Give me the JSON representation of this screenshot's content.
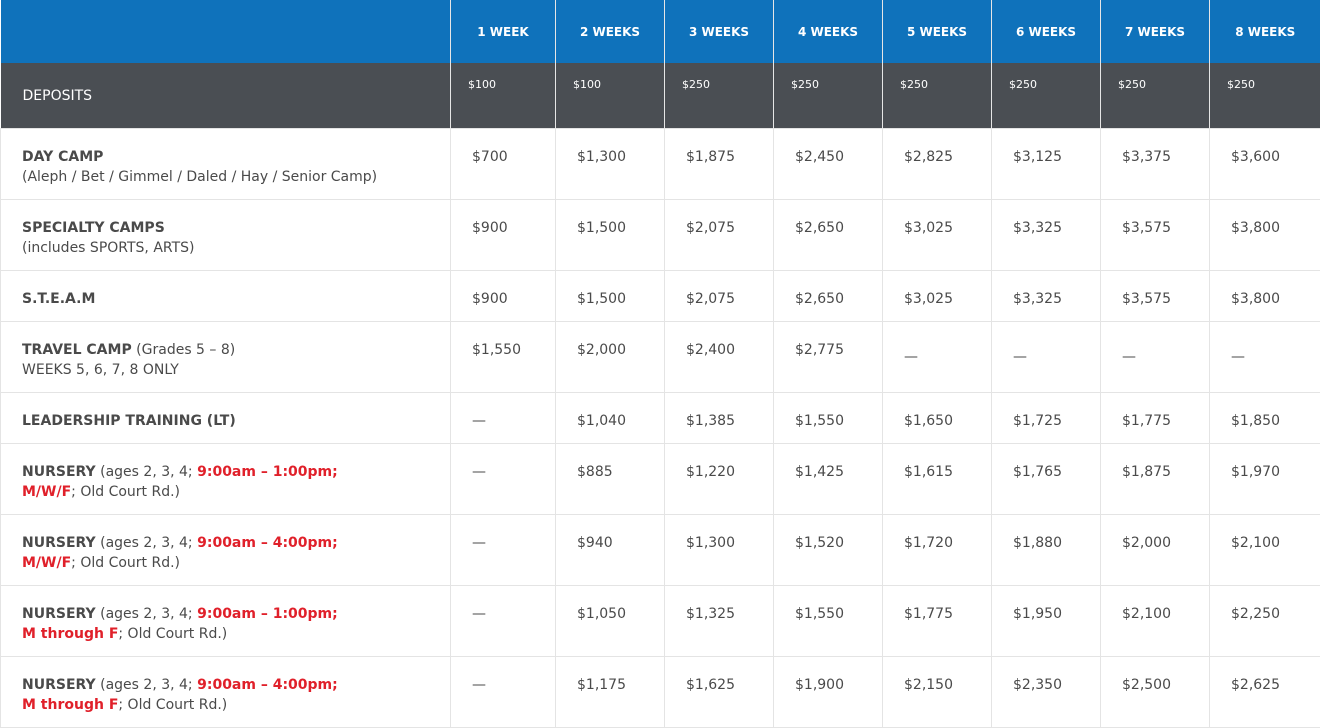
{
  "header": {
    "weeks": [
      "1 WEEK",
      "2 WEEKS",
      "3 WEEKS",
      "4 WEEKS",
      "5 WEEKS",
      "6 WEEKS",
      "7 WEEKS",
      "8 WEEKS"
    ]
  },
  "deposits": {
    "label": "DEPOSITS",
    "values": [
      "$100",
      "$100",
      "$250",
      "$250",
      "$250",
      "$250",
      "$250",
      "$250"
    ]
  },
  "colors": {
    "header_blue": "#0f72bb",
    "deposit_gray": "#4a4e53",
    "highlight_red": "#e0202a"
  },
  "rows": [
    {
      "title": "DAY CAMP",
      "title_suffix": "",
      "hl1": "",
      "hl1_after": "",
      "hl2": "",
      "hl2_after": "",
      "line2": "(Aleph / Bet / Gimmel / Daled / Hay / Senior Camp)",
      "values": [
        "$700",
        "$1,300",
        "$1,875",
        "$2,450",
        "$2,825",
        "$3,125",
        "$3,375",
        "$3,600"
      ]
    },
    {
      "title": "SPECIALTY CAMPS",
      "title_suffix": "",
      "hl1": "",
      "hl1_after": "",
      "hl2": "",
      "hl2_after": "",
      "line2": "(includes SPORTS, ARTS)",
      "values": [
        "$900",
        "$1,500",
        "$2,075",
        "$2,650",
        "$3,025",
        "$3,325",
        "$3,575",
        "$3,800"
      ]
    },
    {
      "title": "S.T.E.A.M",
      "title_suffix": "",
      "hl1": "",
      "hl1_after": "",
      "hl2": "",
      "hl2_after": "",
      "line2": "",
      "values": [
        "$900",
        "$1,500",
        "$2,075",
        "$2,650",
        "$3,025",
        "$3,325",
        "$3,575",
        "$3,800"
      ]
    },
    {
      "title": "TRAVEL CAMP",
      "title_suffix": " (Grades 5 – 8)",
      "hl1": "",
      "hl1_after": "",
      "hl2": "",
      "hl2_after": "",
      "line2": "WEEKS 5, 6, 7, 8 ONLY",
      "values": [
        "$1,550",
        "$2,000",
        "$2,400",
        "$2,775",
        "—",
        "—",
        "—",
        "—"
      ]
    },
    {
      "title": "LEADERSHIP TRAINING (LT)",
      "title_suffix": "",
      "hl1": "",
      "hl1_after": "",
      "hl2": "",
      "hl2_after": "",
      "line2": "",
      "values": [
        "—",
        "$1,040",
        "$1,385",
        "$1,550",
        "$1,650",
        "$1,725",
        "$1,775",
        "$1,850"
      ]
    },
    {
      "title": "NURSERY",
      "title_suffix": " (ages 2, 3, 4; ",
      "hl1": "9:00am – 1:00pm;",
      "hl1_after": "",
      "hl2": "M/W/F",
      "hl2_after": "; Old Court Rd.)",
      "line2": "",
      "values": [
        "—",
        "$885",
        "$1,220",
        "$1,425",
        "$1,615",
        "$1,765",
        "$1,875",
        "$1,970"
      ]
    },
    {
      "title": "NURSERY",
      "title_suffix": " (ages 2, 3, 4; ",
      "hl1": "9:00am – 4:00pm;",
      "hl1_after": "",
      "hl2": "M/W/F",
      "hl2_after": "; Old Court Rd.)",
      "line2": "",
      "values": [
        "—",
        "$940",
        "$1,300",
        "$1,520",
        "$1,720",
        "$1,880",
        "$2,000",
        "$2,100"
      ]
    },
    {
      "title": "NURSERY",
      "title_suffix": " (ages 2, 3, 4; ",
      "hl1": "9:00am – 1:00pm;",
      "hl1_after": "",
      "hl2": "M through F",
      "hl2_after": "; Old Court Rd.)",
      "line2": "",
      "values": [
        "—",
        "$1,050",
        "$1,325",
        "$1,550",
        "$1,775",
        "$1,950",
        "$2,100",
        "$2,250"
      ]
    },
    {
      "title": "NURSERY",
      "title_suffix": " (ages 2, 3, 4; ",
      "hl1": "9:00am – 4:00pm;",
      "hl1_after": "",
      "hl2": "M through F",
      "hl2_after": "; Old Court Rd.)",
      "line2": "",
      "values": [
        "—",
        "$1,175",
        "$1,625",
        "$1,900",
        "$2,150",
        "$2,350",
        "$2,500",
        "$2,625"
      ]
    }
  ]
}
